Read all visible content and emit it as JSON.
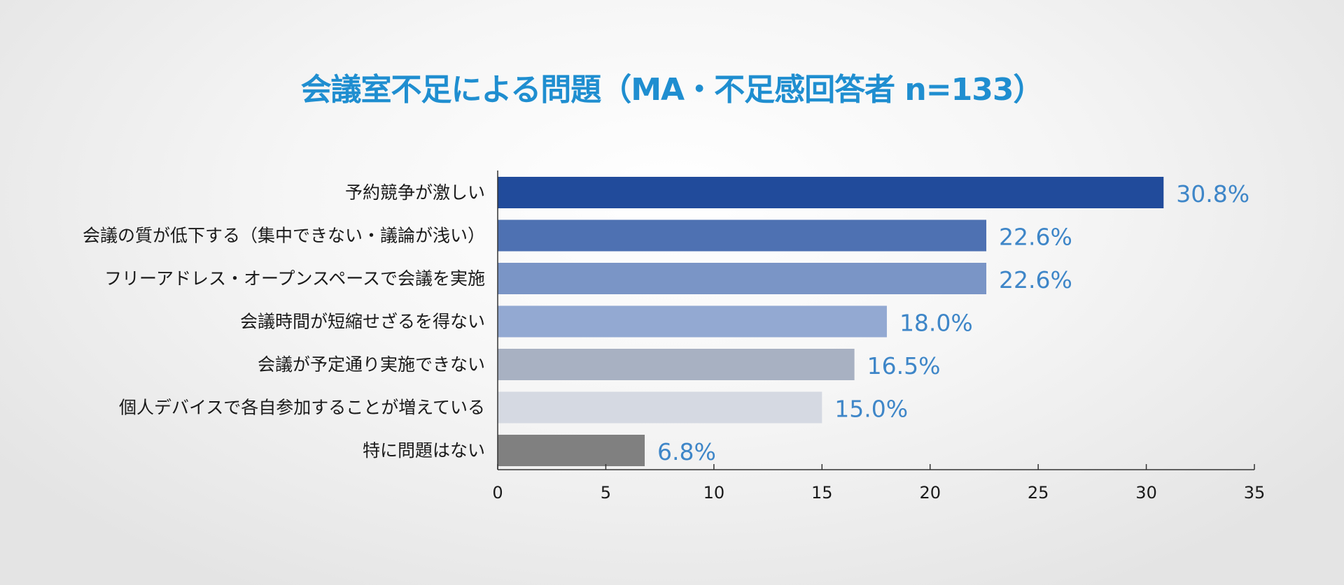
{
  "chart_data": {
    "type": "bar",
    "orientation": "horizontal",
    "title": "会議室不足による問題（MA・不足感回答者 n=133）",
    "categories": [
      "予約競争が激しい",
      "会議の質が低下する（集中できない・議論が浅い）",
      "フリーアドレス・オープンスペースで会議を実施",
      "会議時間が短縮せざるを得ない",
      "会議が予定通り実施できない",
      "個人デバイスで各自参加することが増えている",
      "特に問題はない"
    ],
    "values": [
      30.8,
      22.6,
      22.6,
      18.0,
      16.5,
      15.0,
      6.8
    ],
    "value_labels": [
      "30.8%",
      "22.6%",
      "22.6%",
      "18.0%",
      "16.5%",
      "15.0%",
      "6.8%"
    ],
    "bar_colors": [
      "#214b9b",
      "#4e71b2",
      "#7a95c6",
      "#93a9d2",
      "#a8b1c2",
      "#d5d9e2",
      "#808080"
    ],
    "value_label_color": "#3e86c8",
    "title_color": "#1f8ed0",
    "xlim": [
      0,
      35
    ],
    "xticks": [
      0,
      5,
      10,
      15,
      20,
      25,
      30,
      35
    ],
    "grid": false,
    "legend": "none"
  }
}
